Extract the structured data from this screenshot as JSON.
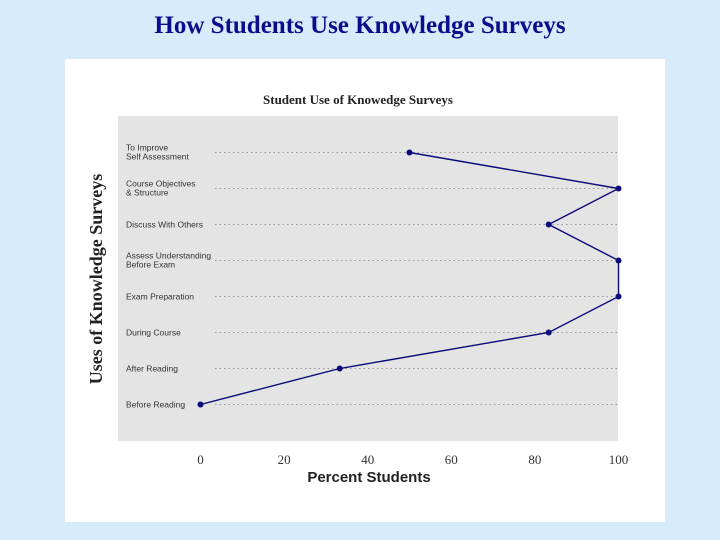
{
  "slide": {
    "title": "How Students Use Knowledge Surveys"
  },
  "chart_data": {
    "type": "line",
    "title": "Student Use of Knowedge Surveys",
    "xlabel": "Percent Students",
    "ylabel": "Uses of Knowledge Surveys",
    "xlim": [
      0,
      100
    ],
    "x_ticks": [
      0,
      20,
      40,
      60,
      80,
      100
    ],
    "categories": [
      [
        "To Improve",
        "Self Assessment"
      ],
      [
        "Course Objectives",
        "& Structure"
      ],
      [
        "Discuss With Others"
      ],
      [
        "Assess Understanding",
        "Before Exam"
      ],
      [
        "Exam Preparation"
      ],
      [
        "During Course"
      ],
      [
        "After Reading"
      ],
      [
        "Before Reading"
      ]
    ],
    "series": [
      {
        "values": [
          50,
          100,
          83.3,
          100,
          100,
          83.3,
          33.3,
          0
        ]
      }
    ],
    "grid": "horizontal dotted",
    "colors": {
      "line": "#0a0a7a",
      "plot_background": "#e4e4e4",
      "title": "#0c0c8c"
    }
  }
}
